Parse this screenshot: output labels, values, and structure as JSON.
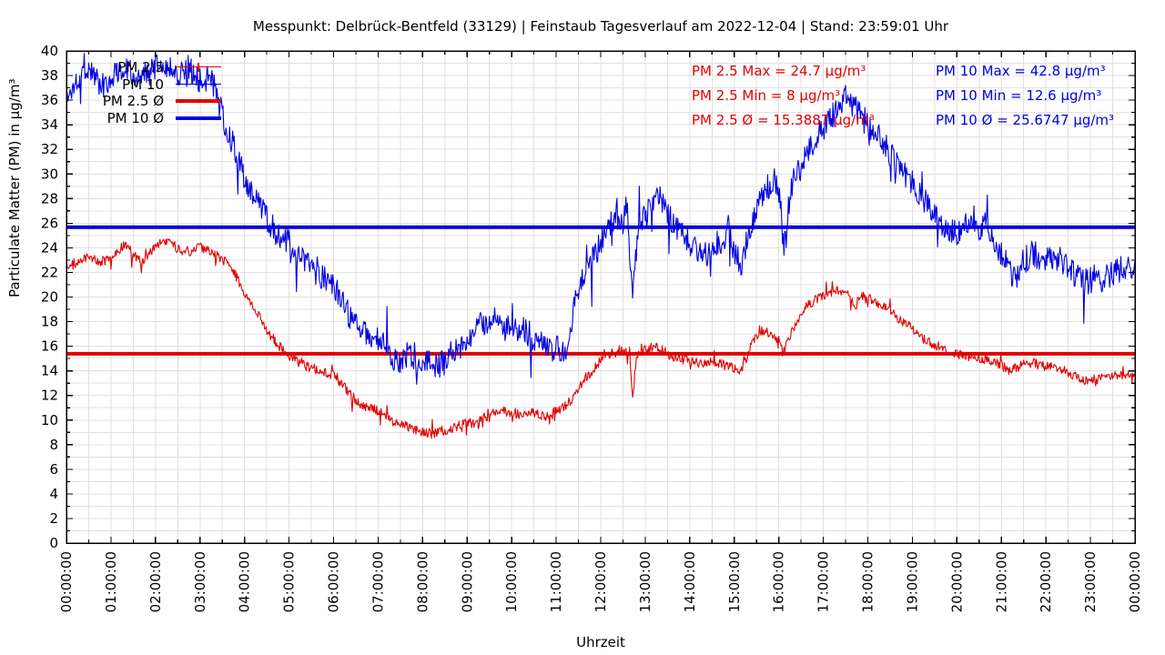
{
  "title": "Messpunkt: Delbrück-Bentfeld (33129) | Feinstaub Tagesverlauf am 2022-12-04 | Stand: 23:59:01 Uhr",
  "colors": {
    "pm25": "#e10000",
    "pm10": "#0000e1",
    "grid": "#e0e0e0",
    "frame": "#000000",
    "text": "#000000"
  },
  "legend": {
    "items": [
      {
        "label": "PM 2.5",
        "series": "pm25",
        "style": "thin"
      },
      {
        "label": "PM 10",
        "series": "pm10",
        "style": "thin"
      },
      {
        "label": "PM 2.5 Ø",
        "series": "pm25",
        "style": "thick"
      },
      {
        "label": "PM 10 Ø",
        "series": "pm10",
        "style": "thick"
      }
    ]
  },
  "annotations": {
    "pm25": [
      "PM 2.5 Max = 24.7 µg/m³",
      "PM 2.5 Min = 8 µg/m³",
      "PM 2.5 Ø = 15.3887 µg/m³"
    ],
    "pm10": [
      "PM 10 Max = 42.8 µg/m³",
      "PM 10 Min = 12.6 µg/m³",
      "PM 10 Ø = 25.6747 µg/m³"
    ]
  },
  "chart_data": {
    "type": "line",
    "title": "Messpunkt: Delbrück-Bentfeld (33129) | Feinstaub Tagesverlauf am 2022-12-04 | Stand: 23:59:01 Uhr",
    "xlabel": "Uhrzeit",
    "ylabel": "Particulate Matter (PM) in µg/m³",
    "xlim_hours": [
      0,
      24
    ],
    "ylim": [
      0,
      40
    ],
    "grid": true,
    "grid_x_step_hours": 0.5,
    "grid_y_step": 1,
    "x_tick_labels": [
      "00:00:00",
      "01:00:00",
      "02:00:00",
      "03:00:00",
      "04:00:00",
      "05:00:00",
      "06:00:00",
      "07:00:00",
      "08:00:00",
      "09:00:00",
      "10:00:00",
      "11:00:00",
      "12:00:00",
      "13:00:00",
      "14:00:00",
      "15:00:00",
      "16:00:00",
      "17:00:00",
      "18:00:00",
      "19:00:00",
      "20:00:00",
      "21:00:00",
      "22:00:00",
      "23:00:00",
      "00:00:00"
    ],
    "y_tick_labels": [
      "0",
      "2",
      "4",
      "6",
      "8",
      "10",
      "12",
      "14",
      "16",
      "18",
      "20",
      "22",
      "24",
      "26",
      "28",
      "30",
      "32",
      "34",
      "36",
      "38",
      "40"
    ],
    "legend_position": "top-left-inside",
    "series": [
      {
        "name": "PM 2.5",
        "color_key": "pm25",
        "max": 24.7,
        "min": 8,
        "avg": 15.3887,
        "noise": 0.4,
        "clip_min": 8,
        "clip_max": 24.7,
        "keypoints": [
          [
            0,
            22.3
          ],
          [
            0.25,
            22.9
          ],
          [
            0.5,
            23.2
          ],
          [
            0.75,
            22.9
          ],
          [
            1,
            23.2
          ],
          [
            1.2,
            23.9
          ],
          [
            1.35,
            24.3
          ],
          [
            1.5,
            23.4
          ],
          [
            1.73,
            22.7
          ],
          [
            2,
            24.2
          ],
          [
            2.2,
            24.5
          ],
          [
            2.35,
            24.6
          ],
          [
            2.5,
            23.9
          ],
          [
            2.75,
            23.7
          ],
          [
            3,
            24
          ],
          [
            3.2,
            23.8
          ],
          [
            3.4,
            23.3
          ],
          [
            3.6,
            22.8
          ],
          [
            3.8,
            21.8
          ],
          [
            4,
            20.3
          ],
          [
            4.25,
            19
          ],
          [
            4.5,
            17.3
          ],
          [
            4.75,
            16.1
          ],
          [
            5,
            15.2
          ],
          [
            5.25,
            14.6
          ],
          [
            5.5,
            14.2
          ],
          [
            5.75,
            14
          ],
          [
            6,
            13.6
          ],
          [
            6.2,
            12.9
          ],
          [
            6.4,
            12
          ],
          [
            6.6,
            11.3
          ],
          [
            6.8,
            10.9
          ],
          [
            7,
            10.8
          ],
          [
            7.2,
            10.2
          ],
          [
            7.4,
            9.8
          ],
          [
            7.6,
            9.6
          ],
          [
            7.8,
            9.2
          ],
          [
            8,
            9
          ],
          [
            8.2,
            8.9
          ],
          [
            8.4,
            9.1
          ],
          [
            8.6,
            9.3
          ],
          [
            8.8,
            9.5
          ],
          [
            9,
            9.8
          ],
          [
            9.2,
            9.7
          ],
          [
            9.4,
            10.2
          ],
          [
            9.6,
            10.6
          ],
          [
            9.8,
            10.8
          ],
          [
            10,
            10.6
          ],
          [
            10.2,
            10.5
          ],
          [
            10.4,
            10.6
          ],
          [
            10.6,
            10.5
          ],
          [
            10.75,
            10.2
          ],
          [
            10.9,
            10.5
          ],
          [
            11.1,
            10.9
          ],
          [
            11.3,
            11.5
          ],
          [
            11.5,
            12.5
          ],
          [
            11.7,
            13.5
          ],
          [
            11.85,
            14.2
          ],
          [
            12,
            14.9
          ],
          [
            12.25,
            15.4
          ],
          [
            12.5,
            15.6
          ],
          [
            12.65,
            15.3
          ],
          [
            12.72,
            11.9
          ],
          [
            12.8,
            15.2
          ],
          [
            13,
            15.7
          ],
          [
            13.2,
            16
          ],
          [
            13.4,
            15.6
          ],
          [
            13.6,
            15.2
          ],
          [
            13.8,
            14.9
          ],
          [
            14,
            14.9
          ],
          [
            14.25,
            14.6
          ],
          [
            14.5,
            14.8
          ],
          [
            14.75,
            14.5
          ],
          [
            15,
            14.2
          ],
          [
            15.15,
            14.1
          ],
          [
            15.3,
            15.3
          ],
          [
            15.45,
            16.6
          ],
          [
            15.6,
            17.2
          ],
          [
            15.8,
            17.1
          ],
          [
            15.95,
            16.4
          ],
          [
            16.1,
            15.5
          ],
          [
            16.3,
            17.2
          ],
          [
            16.5,
            18.7
          ],
          [
            16.7,
            19.5
          ],
          [
            16.9,
            20
          ],
          [
            17.1,
            20.3
          ],
          [
            17.3,
            20.5
          ],
          [
            17.5,
            20.3
          ],
          [
            17.65,
            19.9
          ],
          [
            17.72,
            18.9
          ],
          [
            17.8,
            20.1
          ],
          [
            18,
            19.9
          ],
          [
            18.25,
            19.4
          ],
          [
            18.5,
            18.9
          ],
          [
            18.75,
            18.1
          ],
          [
            19,
            17.4
          ],
          [
            19.25,
            16.6
          ],
          [
            19.5,
            16.1
          ],
          [
            19.75,
            15.7
          ],
          [
            20,
            15.3
          ],
          [
            20.25,
            15.2
          ],
          [
            20.5,
            15
          ],
          [
            20.75,
            14.8
          ],
          [
            21,
            14.5
          ],
          [
            21.15,
            14
          ],
          [
            21.3,
            14.2
          ],
          [
            21.5,
            14.5
          ],
          [
            21.7,
            14.7
          ],
          [
            21.9,
            14.4
          ],
          [
            22.1,
            14.3
          ],
          [
            22.3,
            14.2
          ],
          [
            22.5,
            13.9
          ],
          [
            22.7,
            13.5
          ],
          [
            22.9,
            13.2
          ],
          [
            23.1,
            13.3
          ],
          [
            23.3,
            13.4
          ],
          [
            23.5,
            13.7
          ],
          [
            23.7,
            13.6
          ],
          [
            23.85,
            13.8
          ],
          [
            24,
            13.7
          ]
        ]
      },
      {
        "name": "PM 10",
        "color_key": "pm10",
        "max": 42.8,
        "min": 12.6,
        "avg": 25.6747,
        "noise": 1.1,
        "clip_min": 12.6,
        "clip_max": 40,
        "keypoints": [
          [
            0,
            35.8
          ],
          [
            0.2,
            37.5
          ],
          [
            0.4,
            38.8
          ],
          [
            0.6,
            38.2
          ],
          [
            0.8,
            37.2
          ],
          [
            1,
            37.8
          ],
          [
            1.25,
            38.8
          ],
          [
            1.5,
            38.3
          ],
          [
            1.75,
            37.9
          ],
          [
            2,
            38.6
          ],
          [
            2.25,
            38.9
          ],
          [
            2.5,
            38.2
          ],
          [
            2.75,
            38.6
          ],
          [
            3,
            37.6
          ],
          [
            3.2,
            37.9
          ],
          [
            3.35,
            36.8
          ],
          [
            3.5,
            34.8
          ],
          [
            3.7,
            32.8
          ],
          [
            3.85,
            31.2
          ],
          [
            4,
            29.6
          ],
          [
            4.25,
            27.9
          ],
          [
            4.5,
            26.4
          ],
          [
            4.75,
            25.1
          ],
          [
            5,
            24.4
          ],
          [
            5.25,
            23.2
          ],
          [
            5.5,
            22.4
          ],
          [
            5.75,
            21.6
          ],
          [
            6,
            20.9
          ],
          [
            6.2,
            19.4
          ],
          [
            6.4,
            18.2
          ],
          [
            6.6,
            17.2
          ],
          [
            6.8,
            16.8
          ],
          [
            7,
            16.5
          ],
          [
            7.2,
            15.8
          ],
          [
            7.35,
            15
          ],
          [
            7.5,
            14.9
          ],
          [
            7.65,
            15.3
          ],
          [
            7.8,
            14.9
          ],
          [
            8,
            15.1
          ],
          [
            8.2,
            14.6
          ],
          [
            8.35,
            14.4
          ],
          [
            8.5,
            15
          ],
          [
            8.75,
            15.6
          ],
          [
            9,
            16.8
          ],
          [
            9.2,
            17.3
          ],
          [
            9.4,
            18
          ],
          [
            9.55,
            18.3
          ],
          [
            9.7,
            17.8
          ],
          [
            9.85,
            17.5
          ],
          [
            10,
            17.4
          ],
          [
            10.2,
            17.6
          ],
          [
            10.4,
            17
          ],
          [
            10.6,
            16.4
          ],
          [
            10.8,
            16
          ],
          [
            11,
            15.8
          ],
          [
            11.15,
            15.6
          ],
          [
            11.3,
            17.2
          ],
          [
            11.45,
            20
          ],
          [
            11.6,
            21.6
          ],
          [
            11.75,
            22.8
          ],
          [
            11.9,
            23.8
          ],
          [
            12,
            24.5
          ],
          [
            12.2,
            25.8
          ],
          [
            12.35,
            26.5
          ],
          [
            12.5,
            26.2
          ],
          [
            12.58,
            28
          ],
          [
            12.72,
            19.6
          ],
          [
            12.85,
            26.3
          ],
          [
            13,
            26.6
          ],
          [
            13.2,
            27.6
          ],
          [
            13.3,
            28.2
          ],
          [
            13.45,
            26.9
          ],
          [
            13.6,
            26.1
          ],
          [
            13.75,
            25.4
          ],
          [
            14,
            24.3
          ],
          [
            14.2,
            23.9
          ],
          [
            14.4,
            23.6
          ],
          [
            14.6,
            24.3
          ],
          [
            14.8,
            24.6
          ],
          [
            14.88,
            26.2
          ],
          [
            15,
            23.4
          ],
          [
            15.15,
            22.7
          ],
          [
            15.3,
            24.9
          ],
          [
            15.5,
            27.4
          ],
          [
            15.7,
            28.7
          ],
          [
            15.9,
            29.6
          ],
          [
            16.02,
            28.4
          ],
          [
            16.12,
            24.3
          ],
          [
            16.22,
            27.5
          ],
          [
            16.35,
            29.8
          ],
          [
            16.5,
            30.6
          ],
          [
            16.7,
            32.2
          ],
          [
            16.9,
            33.2
          ],
          [
            17.1,
            34.3
          ],
          [
            17.3,
            35.2
          ],
          [
            17.5,
            36.2
          ],
          [
            17.7,
            35.4
          ],
          [
            17.85,
            34.6
          ],
          [
            18,
            34.1
          ],
          [
            18.2,
            33.4
          ],
          [
            18.4,
            32.2
          ],
          [
            18.6,
            31.2
          ],
          [
            18.8,
            30.2
          ],
          [
            19,
            29.4
          ],
          [
            19.2,
            28.2
          ],
          [
            19.4,
            27.1
          ],
          [
            19.6,
            26.2
          ],
          [
            19.8,
            25.7
          ],
          [
            20,
            25.3
          ],
          [
            20.2,
            26.1
          ],
          [
            20.35,
            26.6
          ],
          [
            20.5,
            25.5
          ],
          [
            20.65,
            25.9
          ],
          [
            20.8,
            24.7
          ],
          [
            21,
            23.5
          ],
          [
            21.2,
            22.1
          ],
          [
            21.35,
            21.4
          ],
          [
            21.5,
            22.9
          ],
          [
            21.7,
            23.6
          ],
          [
            21.9,
            23.2
          ],
          [
            22.1,
            23.4
          ],
          [
            22.3,
            23
          ],
          [
            22.5,
            22.4
          ],
          [
            22.7,
            21.6
          ],
          [
            22.9,
            21.2
          ],
          [
            23.1,
            21.6
          ],
          [
            23.3,
            21.4
          ],
          [
            23.5,
            21.9
          ],
          [
            23.7,
            22.3
          ],
          [
            23.85,
            22.7
          ],
          [
            24,
            22.4
          ]
        ]
      }
    ],
    "avg_lines": [
      {
        "series": "PM 2.5",
        "color_key": "pm25",
        "value": 15.3887
      },
      {
        "series": "PM 10",
        "color_key": "pm10",
        "value": 25.6747
      }
    ]
  }
}
